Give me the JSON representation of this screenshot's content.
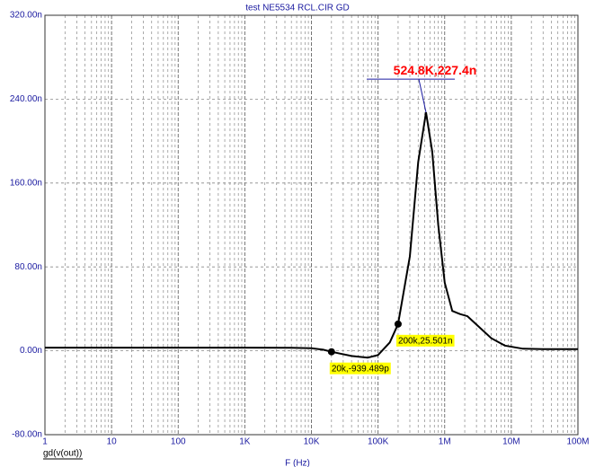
{
  "chart_data": {
    "type": "line",
    "title": "test NE5534 RCL.CIR GD",
    "xlabel": "F (Hz)",
    "xscale": "log",
    "grid": true,
    "x": [
      1,
      10,
      100,
      1000,
      5000,
      10000,
      15000,
      20000,
      40000,
      70000,
      100000,
      150000,
      200000,
      300000,
      400000,
      524800,
      650000,
      800000,
      1000000,
      1300000,
      1700000,
      2200000,
      3000000,
      5000000,
      8000000,
      15000000,
      30000000,
      100000000
    ],
    "series": [
      {
        "name": "gd(v(out))",
        "color": "#000000",
        "values": [
          3,
          3,
          3,
          3,
          2.8,
          2.5,
          1,
          -0.939489,
          -5,
          -6.5,
          -4,
          8,
          25.501,
          90,
          180,
          227.4,
          190,
          120,
          65,
          38,
          35,
          33,
          25,
          12,
          5,
          2,
          1.5,
          1.5
        ]
      }
    ],
    "xlim": [
      1,
      100000000
    ],
    "xticks": [
      1,
      10,
      100,
      {
        "value": 1000,
        "label": "1K"
      },
      {
        "value": 10000,
        "label": "10K"
      },
      {
        "value": 100000,
        "label": "100K"
      },
      {
        "value": 1000000,
        "label": "1M"
      },
      {
        "value": 10000000,
        "label": "10M"
      },
      {
        "value": 100000000,
        "label": "100M"
      }
    ],
    "ylim": [
      -80,
      320
    ],
    "yticks": [
      {
        "value": -80,
        "label": "-80.00n"
      },
      {
        "value": 0,
        "label": "0.00n"
      },
      {
        "value": 80,
        "label": "80.00n"
      },
      {
        "value": 160,
        "label": "160.00n"
      },
      {
        "value": 240,
        "label": "240.00n"
      },
      {
        "value": 320,
        "label": "320.00n"
      }
    ],
    "annotations": [
      {
        "label": "20k,-939.489p",
        "x": 20000,
        "y": -0.939489,
        "boxed": true,
        "color": "#ffff00"
      },
      {
        "label": "200k,25.501n",
        "x": 200000,
        "y": 25.501,
        "boxed": true,
        "color": "#ffff00"
      },
      {
        "label": "524.8K,227.4n",
        "x": 524800,
        "y": 227.4,
        "boxed": false,
        "color": "#ff0000"
      }
    ]
  }
}
